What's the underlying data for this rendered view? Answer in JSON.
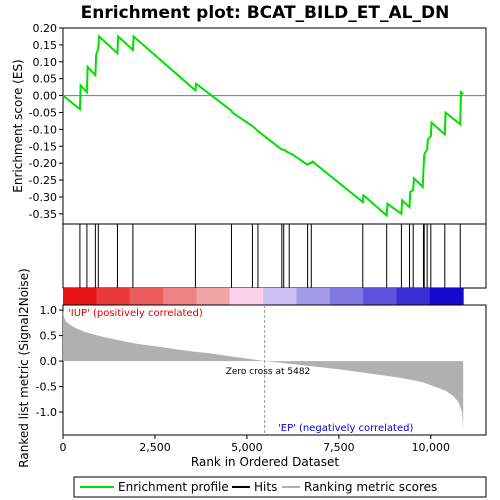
{
  "title": "Enrichment plot: BCAT_BILD_ET_AL_DN",
  "colors": {
    "es_line": "#00e000",
    "hit": "#000000",
    "metric_fill": "#b0b0b0",
    "zero_cross": "#999999",
    "pos_label": "#dd0000",
    "neg_label": "#0000cc"
  },
  "chart_data": [
    {
      "panel": "enrichment-score",
      "type": "line",
      "ylabel": "Enrichment score (ES)",
      "ylim": [
        -0.38,
        0.2
      ],
      "yticks": [
        0.2,
        0.15,
        0.1,
        0.05,
        0.0,
        -0.05,
        -0.1,
        -0.15,
        -0.2,
        -0.25,
        -0.3,
        -0.35
      ],
      "ytick_labels": [
        "0.20",
        "0.15",
        "0.10",
        "0.05",
        "0.00",
        "-0.05",
        "-0.10",
        "-0.15",
        "-0.20",
        "-0.25",
        "-0.30",
        "-0.35"
      ],
      "xlim": [
        0,
        11500
      ],
      "series": [
        {
          "name": "Enrichment profile",
          "x": [
            0,
            460,
            480,
            650,
            670,
            880,
            900,
            960,
            980,
            1480,
            1500,
            1900,
            1920,
            3600,
            3620,
            4580,
            4600,
            5150,
            5300,
            5950,
            6000,
            6150,
            6250,
            6650,
            6700,
            6750,
            6780,
            8150,
            8170,
            8800,
            8820,
            9200,
            9220,
            9420,
            9440,
            9520,
            9540,
            9780,
            9800,
            9820,
            9840,
            9900,
            9920,
            10000,
            10020,
            10380,
            10400,
            10800,
            10820,
            10880
          ],
          "y": [
            0.0,
            -0.04,
            0.03,
            0.01,
            0.085,
            0.06,
            0.12,
            0.14,
            0.175,
            0.125,
            0.175,
            0.135,
            0.175,
            0.015,
            0.035,
            -0.045,
            -0.05,
            -0.09,
            -0.105,
            -0.16,
            -0.16,
            -0.17,
            -0.175,
            -0.205,
            -0.2,
            -0.2,
            -0.195,
            -0.315,
            -0.295,
            -0.355,
            -0.32,
            -0.35,
            -0.31,
            -0.33,
            -0.285,
            -0.28,
            -0.245,
            -0.27,
            -0.22,
            -0.175,
            -0.17,
            -0.16,
            -0.13,
            -0.12,
            -0.08,
            -0.115,
            -0.05,
            -0.085,
            0.01,
            0.005
          ]
        }
      ]
    },
    {
      "panel": "hits",
      "type": "scatter",
      "x": [
        460,
        650,
        880,
        960,
        1480,
        1900,
        3600,
        4580,
        5150,
        5300,
        5950,
        6000,
        6150,
        6650,
        6750,
        8150,
        8800,
        9200,
        9420,
        9520,
        9800,
        9820,
        9900,
        10000,
        10380,
        10800
      ]
    },
    {
      "panel": "ranked-list-metric",
      "type": "area",
      "xlabel": "Rank in Ordered Dataset",
      "ylabel": "Ranked list metric (Signal2Noise)",
      "ylim": [
        -1.45,
        1.1
      ],
      "yticks": [
        1.0,
        0.5,
        0.0,
        -0.5,
        -1.0
      ],
      "ytick_labels": [
        "1.0",
        "0.5",
        "0.0",
        "-0.5",
        "-1.0"
      ],
      "xticks": [
        0,
        2500,
        5000,
        7500,
        10000
      ],
      "xtick_labels": [
        "0",
        "2,500",
        "5,000",
        "7,500",
        "10,000"
      ],
      "xlim": [
        0,
        11500
      ],
      "x": [
        0,
        30,
        100,
        300,
        600,
        1000,
        1500,
        2000,
        2500,
        3000,
        3500,
        4000,
        4500,
        5000,
        5482,
        6000,
        6500,
        7000,
        7500,
        8000,
        8500,
        9000,
        9500,
        9800,
        10100,
        10400,
        10600,
        10750,
        10850,
        10880
      ],
      "values": [
        1.0,
        0.85,
        0.76,
        0.66,
        0.57,
        0.49,
        0.41,
        0.34,
        0.29,
        0.24,
        0.19,
        0.15,
        0.1,
        0.05,
        0.0,
        -0.04,
        -0.08,
        -0.12,
        -0.16,
        -0.21,
        -0.26,
        -0.31,
        -0.37,
        -0.42,
        -0.5,
        -0.58,
        -0.68,
        -0.8,
        -1.0,
        -1.35
      ],
      "zero_cross_label": "Zero cross at 5482",
      "zero_cross": 5482,
      "pos_label": "'IUP' (positively correlated)",
      "neg_label": "'EP' (negatively correlated)"
    }
  ],
  "legend": {
    "items": [
      {
        "label": "Enrichment profile",
        "color": "#00e000"
      },
      {
        "label": "Hits",
        "color": "#000000"
      },
      {
        "label": "Ranking metric scores",
        "color": "#b0b0b0"
      }
    ]
  }
}
